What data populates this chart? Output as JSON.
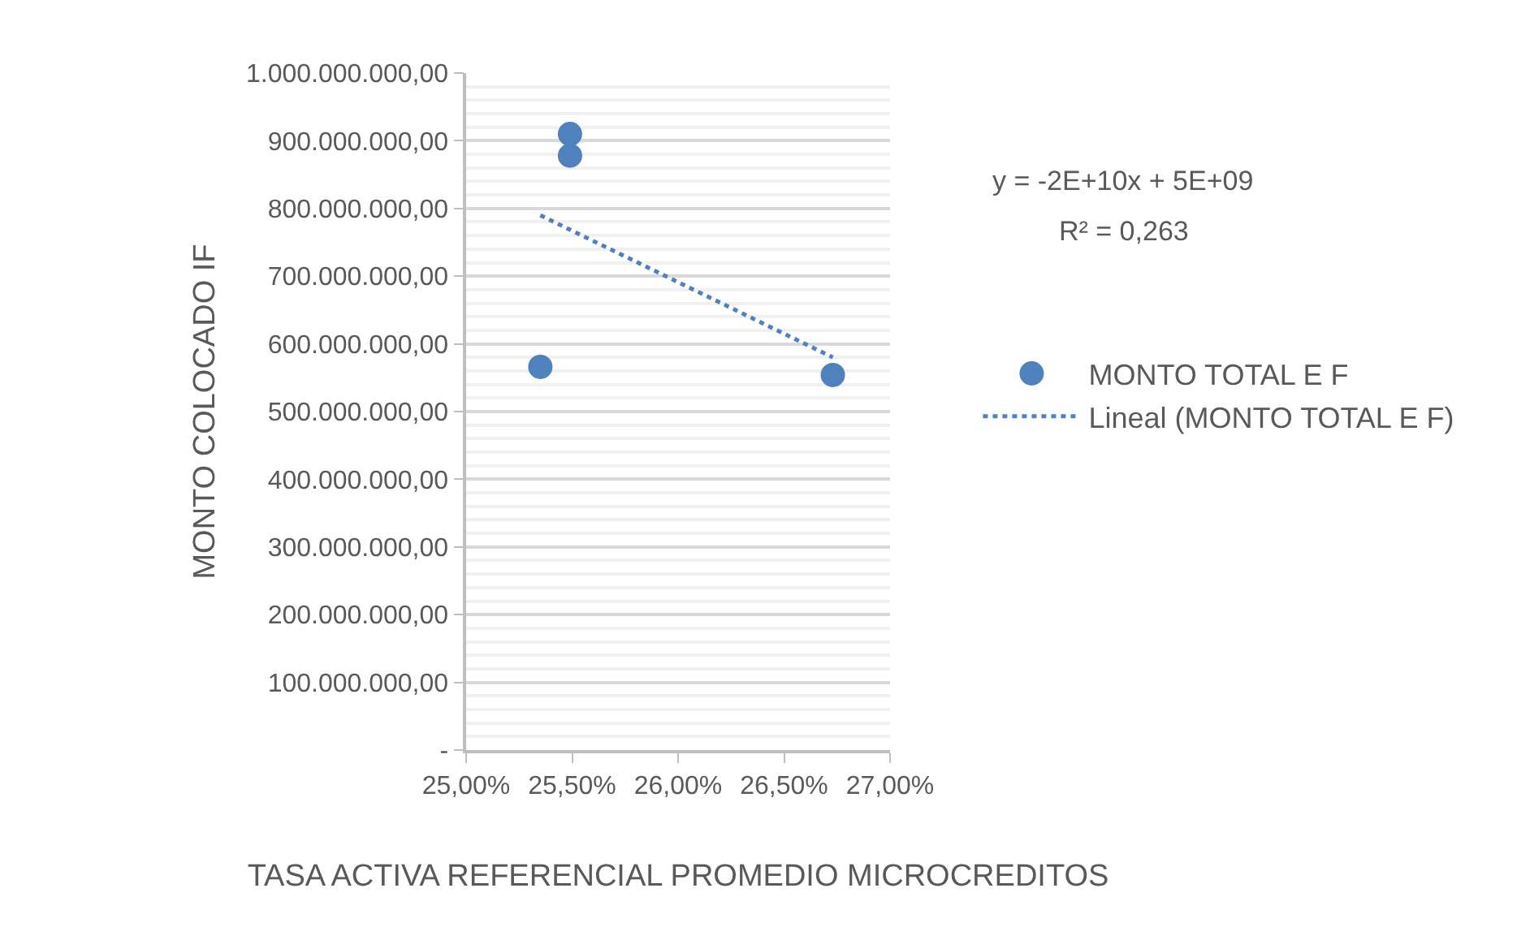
{
  "chart_data": {
    "type": "scatter",
    "xlabel": "TASA ACTIVA REFERENCIAL PROMEDIO MICROCREDITOS",
    "ylabel": "MONTO COLOCADO IF",
    "series": [
      {
        "name": "MONTO TOTAL E F",
        "color": "#4f81bd",
        "marker": "circle",
        "x": [
          25.35,
          25.49,
          25.49,
          26.73
        ],
        "values": [
          566000000,
          910000000,
          878000000,
          554000000
        ]
      },
      {
        "name": "Lineal (MONTO TOTAL E F)",
        "type": "line",
        "color": "#4f81bd",
        "marker": "none",
        "line_style": "dotted",
        "x": [
          25.35,
          26.73
        ],
        "values": [
          790000000,
          580000000
        ]
      }
    ],
    "xlim": [
      25,
      27
    ],
    "xticks": [
      {
        "value": 25,
        "label": "25,00%"
      },
      {
        "value": 25.5,
        "label": "25,50%"
      },
      {
        "value": 26,
        "label": "26,00%"
      },
      {
        "value": 26.5,
        "label": "26,50%"
      },
      {
        "value": 27,
        "label": "27,00%"
      }
    ],
    "ylim": [
      0,
      1000000000
    ],
    "yticks": [
      {
        "value": 0,
        "label": "-"
      },
      {
        "value": 100000000,
        "label": "100.000.000,00"
      },
      {
        "value": 200000000,
        "label": "200.000.000,00"
      },
      {
        "value": 300000000,
        "label": "300.000.000,00"
      },
      {
        "value": 400000000,
        "label": "400.000.000,00"
      },
      {
        "value": 500000000,
        "label": "500.000.000,00"
      },
      {
        "value": 600000000,
        "label": "600.000.000,00"
      },
      {
        "value": 700000000,
        "label": "700.000.000,00"
      },
      {
        "value": 800000000,
        "label": "800.000.000,00"
      },
      {
        "value": 900000000,
        "label": "900.000.000,00"
      },
      {
        "value": 1000000000,
        "label": "1.000.000.000,00"
      }
    ],
    "grid": "y",
    "legend": "right",
    "annotations": [
      "y = -2E+10x + 5E+09",
      "R² = 0,263"
    ]
  }
}
